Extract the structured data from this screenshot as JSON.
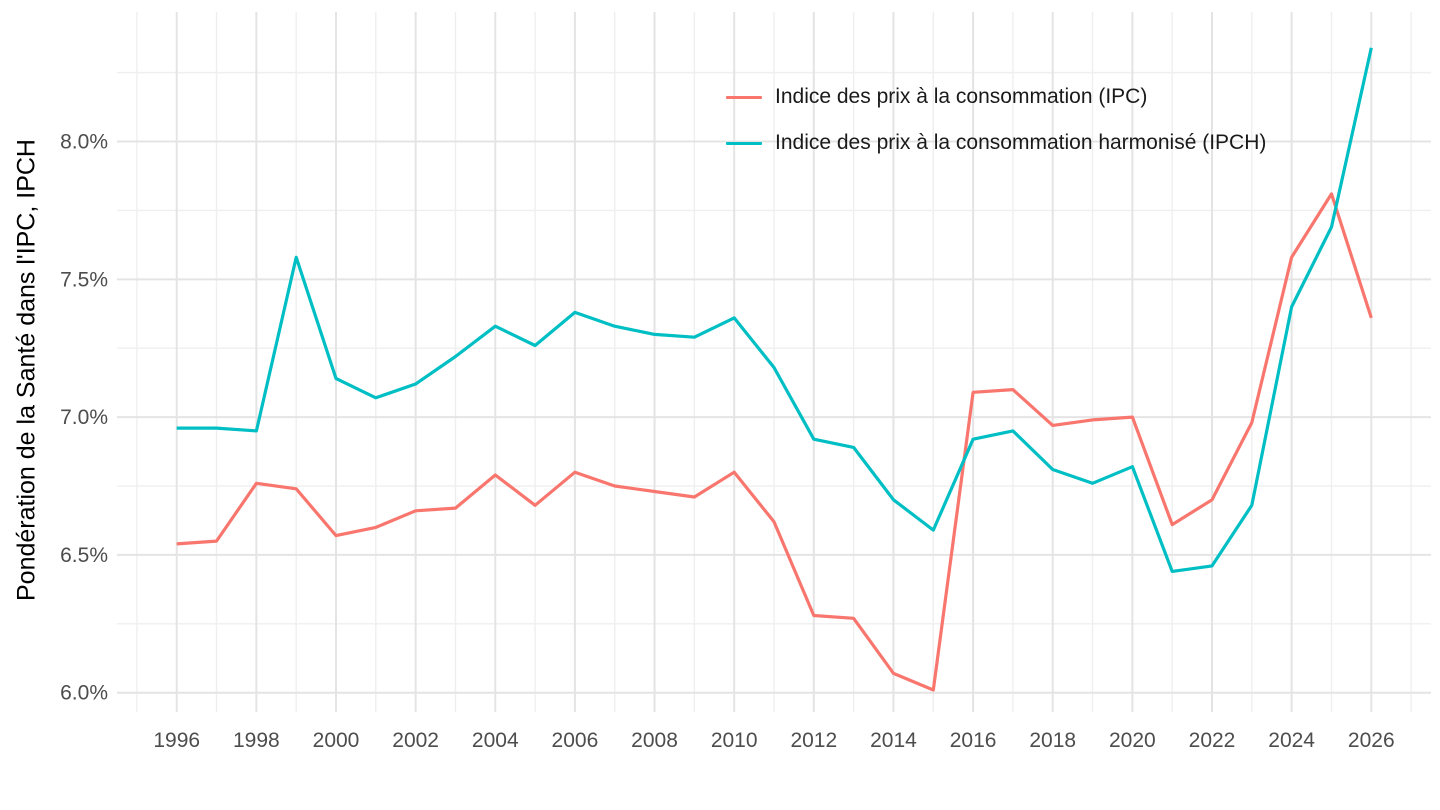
{
  "chart_data": {
    "type": "line",
    "title": "",
    "xlabel": "",
    "ylabel": "Pondération de la Santé dans l'IPC, IPCH",
    "x": [
      1996,
      1997,
      1998,
      1999,
      2000,
      2001,
      2002,
      2003,
      2004,
      2005,
      2006,
      2007,
      2008,
      2009,
      2010,
      2011,
      2012,
      2013,
      2014,
      2015,
      2016,
      2017,
      2018,
      2019,
      2020,
      2021,
      2022,
      2023,
      2024,
      2025,
      2026
    ],
    "series": [
      {
        "name": "Indice des prix à la consommation (IPC)",
        "color": "#F8766D",
        "values": [
          6.54,
          6.55,
          6.76,
          6.74,
          6.57,
          6.6,
          6.66,
          6.67,
          6.79,
          6.68,
          6.8,
          6.75,
          6.73,
          6.71,
          6.8,
          6.62,
          6.28,
          6.27,
          6.07,
          6.01,
          7.09,
          7.1,
          6.97,
          6.99,
          7.0,
          6.61,
          6.7,
          6.98,
          7.58,
          7.81,
          7.36
        ]
      },
      {
        "name": "Indice des prix à la consommation harmonisé (IPCH)",
        "color": "#00BFC4",
        "values": [
          6.96,
          6.96,
          6.95,
          7.58,
          7.14,
          7.07,
          7.12,
          7.22,
          7.33,
          7.26,
          7.38,
          7.33,
          7.3,
          7.29,
          7.36,
          7.18,
          6.92,
          6.89,
          6.7,
          6.59,
          6.92,
          6.95,
          6.81,
          6.76,
          6.82,
          6.44,
          6.46,
          6.68,
          7.4,
          7.69,
          8.34
        ]
      }
    ],
    "x_ticks": [
      1996,
      1998,
      2000,
      2002,
      2004,
      2006,
      2008,
      2010,
      2012,
      2014,
      2016,
      2018,
      2020,
      2022,
      2024,
      2026
    ],
    "x_minor_ticks": [
      1995,
      1997,
      1999,
      2001,
      2003,
      2005,
      2007,
      2009,
      2011,
      2013,
      2015,
      2017,
      2019,
      2021,
      2023,
      2025,
      2027
    ],
    "y_ticks": [
      6.0,
      6.5,
      7.0,
      7.5,
      8.0
    ],
    "y_tick_labels": [
      "6.0%",
      "6.5%",
      "7.0%",
      "7.5%",
      "8.0%"
    ],
    "y_minor_ticks": [
      6.25,
      6.75,
      7.25,
      7.75,
      8.25
    ],
    "x_range": [
      1994.5,
      2027.5
    ],
    "y_range": [
      5.93,
      8.47
    ],
    "grid": true,
    "legend_position": "inside-top-right",
    "colors": {
      "background": "#FFFFFF",
      "grid_major": "#E4E4E4",
      "grid_minor": "#EFEFEF",
      "axis_text": "#4D4D4D",
      "axis_title": "#000000",
      "legend_text": "#1A1A1A"
    }
  }
}
